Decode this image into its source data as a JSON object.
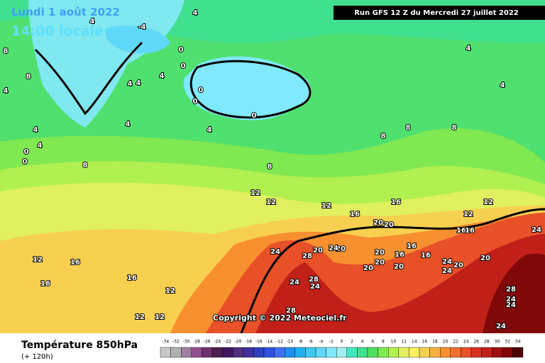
{
  "header": {
    "date": "Lundi 1 août 2022",
    "time": "14:00 locale",
    "run": "Run GFS 12 Z du Mercredi 27 juillet 2022"
  },
  "copyright": "Copyright © 2022 Meteociel.fr",
  "footer": {
    "title": "Température 850hPa",
    "subtitle": "(+ 120h)"
  },
  "legend": {
    "labels": [
      -34,
      -32,
      -30,
      -28,
      -26,
      -24,
      -22,
      -20,
      -18,
      -16,
      -14,
      -12,
      -10,
      -8,
      -6,
      -4,
      -2,
      0,
      2,
      4,
      6,
      8,
      10,
      12,
      14,
      16,
      18,
      20,
      22,
      24,
      26,
      28,
      30,
      32,
      34
    ],
    "colors": [
      "#c8c8c8",
      "#b0b0b0",
      "#a080a0",
      "#905090",
      "#703070",
      "#502050",
      "#401860",
      "#503080",
      "#4030a0",
      "#3040c0",
      "#3050e0",
      "#4070f0",
      "#2090f0",
      "#20b0f0",
      "#40c8f0",
      "#60d8f8",
      "#80e8ff",
      "#a0f0f0",
      "#40e8c0",
      "#40e090",
      "#50e060",
      "#80e850",
      "#b0f050",
      "#e0f060",
      "#f8f060",
      "#f8d050",
      "#f8b040",
      "#f89030",
      "#f07030",
      "#e85028",
      "#d83020",
      "#c02018",
      "#a01010",
      "#800808",
      "#500000"
    ]
  },
  "contour_labels": [
    4,
    -4,
    4,
    0,
    8,
    8,
    4,
    4,
    4,
    0,
    0,
    4,
    4,
    0,
    0,
    4,
    0,
    0,
    4,
    4,
    8,
    8,
    8,
    8,
    8,
    12,
    12,
    12,
    16,
    16,
    16,
    20,
    20,
    20,
    16,
    16,
    12,
    12,
    16,
    16,
    24,
    28,
    24,
    28,
    24,
    28,
    20,
    24,
    20,
    20,
    20,
    16,
    20,
    24,
    20,
    24,
    20,
    28,
    24,
    24,
    24,
    24,
    12,
    12,
    12,
    16,
    16,
    12,
    4,
    4
  ]
}
